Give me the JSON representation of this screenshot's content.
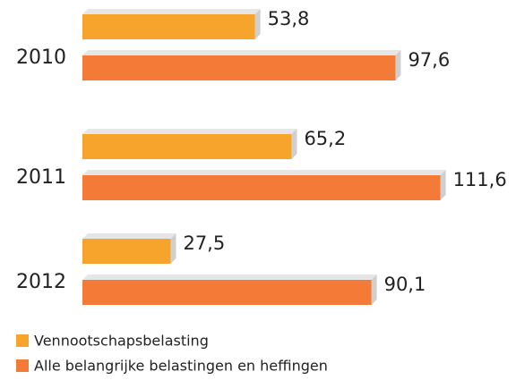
{
  "chart_data": {
    "type": "bar",
    "orientation": "horizontal",
    "categories": [
      "2010",
      "2011",
      "2012"
    ],
    "series": [
      {
        "name": "Vennootschapsbelasting",
        "color": "#f7a42c",
        "values": [
          53.8,
          65.2,
          27.5
        ],
        "value_labels": [
          "53,8",
          "65,2",
          "27,5"
        ]
      },
      {
        "name": "Alle belangrijke belastingen en heffingen",
        "color": "#f47a38",
        "values": [
          97.6,
          111.6,
          90.1
        ],
        "value_labels": [
          "97,6",
          "111,6",
          "90,1"
        ]
      }
    ],
    "xlim": [
      0,
      112
    ],
    "legend": "bottom-left"
  }
}
